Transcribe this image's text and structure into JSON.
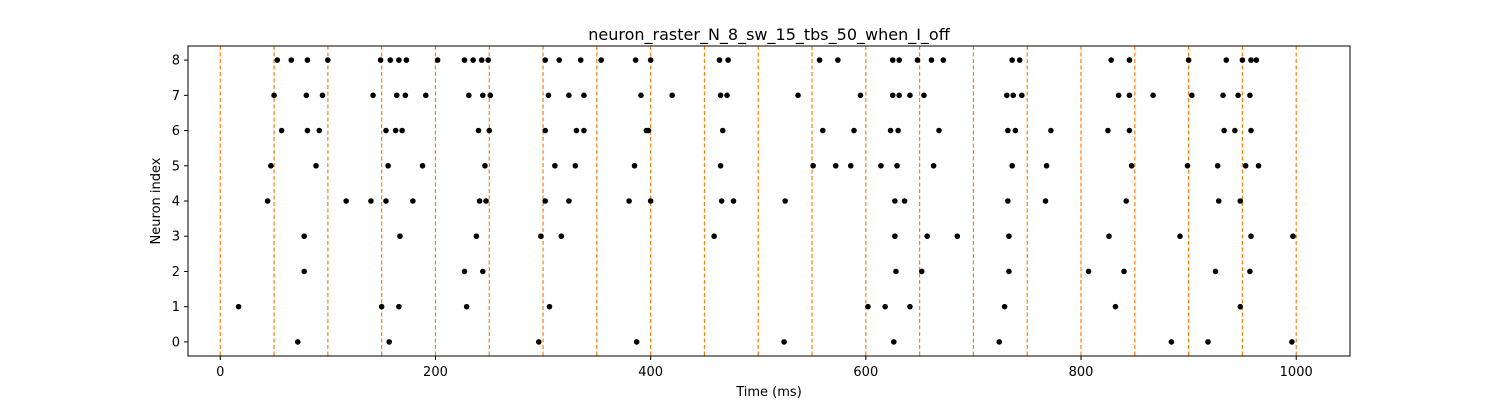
{
  "chart_data": {
    "type": "scatter",
    "title": "neuron_raster_N_8_sw_15_tbs_50_when_I_off",
    "xlabel": "Time (ms)",
    "ylabel": "Neuron index",
    "xlim": [
      -30,
      1050
    ],
    "ylim": [
      -0.4,
      8.4
    ],
    "xticks": [
      0,
      200,
      400,
      600,
      800,
      1000
    ],
    "yticks": [
      0,
      1,
      2,
      3,
      4,
      5,
      6,
      7,
      8
    ],
    "grid": false,
    "marker_color": "#000000",
    "vline_color": "#ff7f0e",
    "vlines": [
      0,
      50,
      100,
      150,
      200,
      250,
      300,
      350,
      400,
      450,
      500,
      550,
      600,
      650,
      700,
      750,
      800,
      850,
      900,
      950,
      1000
    ],
    "series": [
      {
        "neuron": 8,
        "x": [
          53,
          66,
          81,
          100,
          149,
          158,
          166,
          173,
          202,
          227,
          235,
          243,
          249,
          302,
          315,
          335,
          354,
          386,
          400,
          464,
          472,
          557,
          574,
          625,
          631,
          648,
          661,
          672,
          736,
          743,
          828,
          845,
          900,
          935,
          950,
          958,
          963
        ]
      },
      {
        "neuron": 7,
        "x": [
          50,
          80,
          95,
          142,
          164,
          172,
          191,
          231,
          244,
          251,
          305,
          324,
          338,
          391,
          420,
          465,
          471,
          537,
          595,
          625,
          631,
          641,
          654,
          731,
          737,
          745,
          835,
          845,
          867,
          903,
          932,
          946,
          957
        ]
      },
      {
        "neuron": 6,
        "x": [
          57,
          81,
          92,
          154,
          163,
          169,
          240,
          250,
          302,
          331,
          338,
          396,
          398,
          467,
          560,
          589,
          623,
          630,
          668,
          732,
          739,
          772,
          825,
          845,
          933,
          943,
          958
        ]
      },
      {
        "neuron": 5,
        "x": [
          47,
          89,
          156,
          188,
          246,
          311,
          330,
          385,
          465,
          551,
          572,
          586,
          614,
          629,
          663,
          736,
          768,
          847,
          899,
          927,
          953,
          965
        ]
      },
      {
        "neuron": 4,
        "x": [
          44,
          117,
          140,
          154,
          179,
          241,
          247,
          302,
          324,
          380,
          400,
          466,
          477,
          525,
          627,
          636,
          732,
          767,
          842,
          928,
          948
        ]
      },
      {
        "neuron": 3,
        "x": [
          78,
          167,
          238,
          298,
          317,
          459,
          627,
          657,
          685,
          733,
          826,
          892,
          958,
          997
        ]
      },
      {
        "neuron": 2,
        "x": [
          78,
          227,
          244,
          628,
          652,
          733,
          807,
          840,
          925,
          957
        ]
      },
      {
        "neuron": 1,
        "x": [
          17,
          150,
          166,
          229,
          306,
          602,
          618,
          641,
          729,
          832,
          948
        ]
      },
      {
        "neuron": 0,
        "x": [
          72,
          157,
          296,
          387,
          524,
          626,
          724,
          884,
          918,
          996
        ]
      }
    ]
  }
}
